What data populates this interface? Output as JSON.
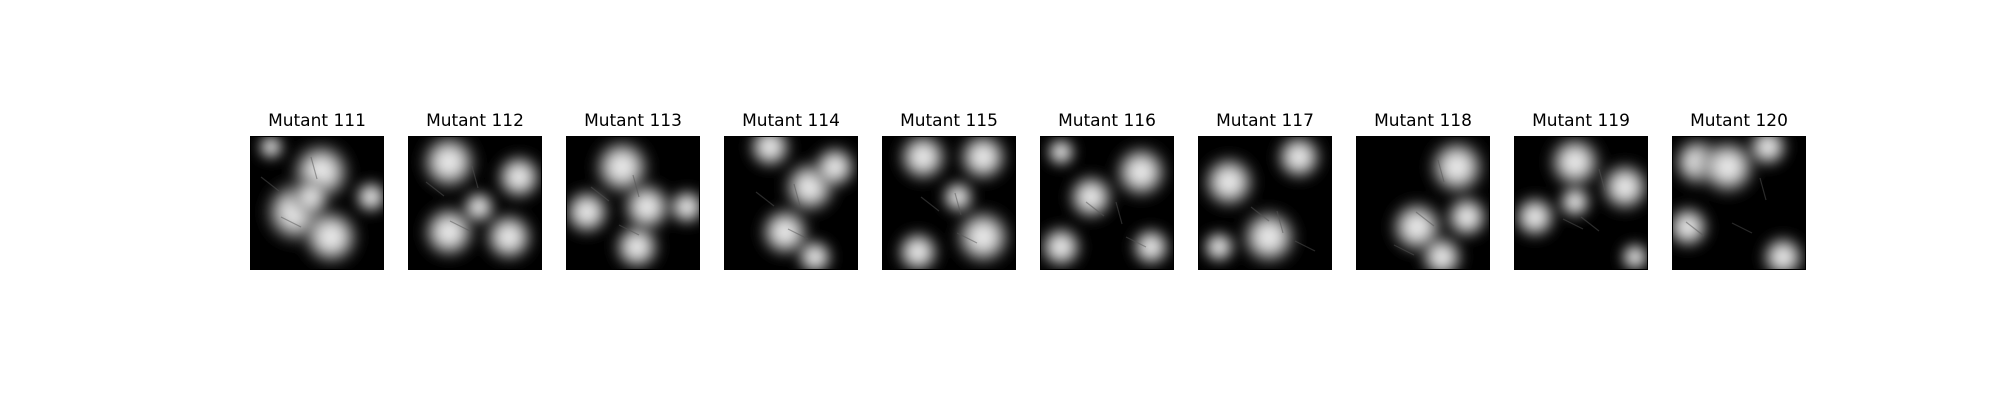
{
  "panels": [
    {
      "title": "Mutant 111"
    },
    {
      "title": "Mutant 112"
    },
    {
      "title": "Mutant 113"
    },
    {
      "title": "Mutant 114"
    },
    {
      "title": "Mutant 115"
    },
    {
      "title": "Mutant 116"
    },
    {
      "title": "Mutant 117"
    },
    {
      "title": "Mutant 118"
    },
    {
      "title": "Mutant 119"
    },
    {
      "title": "Mutant 120"
    }
  ]
}
